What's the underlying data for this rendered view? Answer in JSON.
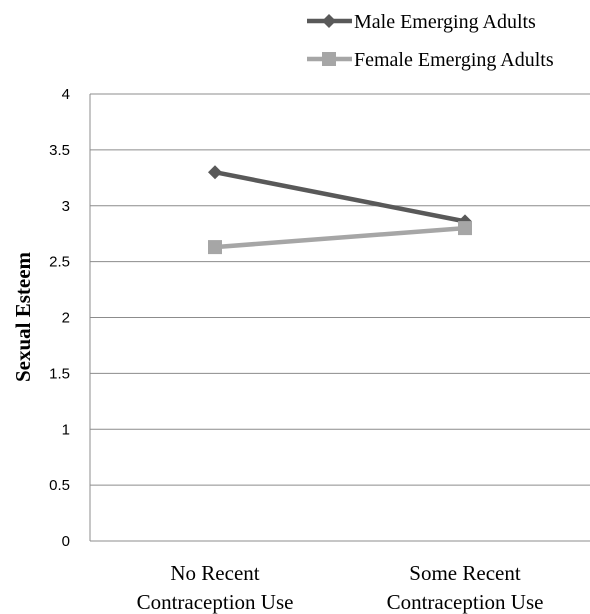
{
  "chart_data": {
    "type": "line",
    "categories": [
      "No Recent\nContraception Use",
      "Some Recent\nContraception Use"
    ],
    "ylabel": "Sexual Esteem",
    "ylim": [
      0,
      4
    ],
    "yticks": [
      0,
      0.5,
      1,
      1.5,
      2,
      2.5,
      3,
      3.5,
      4
    ],
    "grid": true,
    "legend_position": "top-right",
    "series": [
      {
        "name": "Male Emerging Adults",
        "values": [
          3.3,
          2.86
        ],
        "color": "#595959",
        "marker": "diamond"
      },
      {
        "name": "Female Emerging Adults",
        "values": [
          2.63,
          2.8
        ],
        "color": "#a6a6a6",
        "marker": "square"
      }
    ]
  }
}
